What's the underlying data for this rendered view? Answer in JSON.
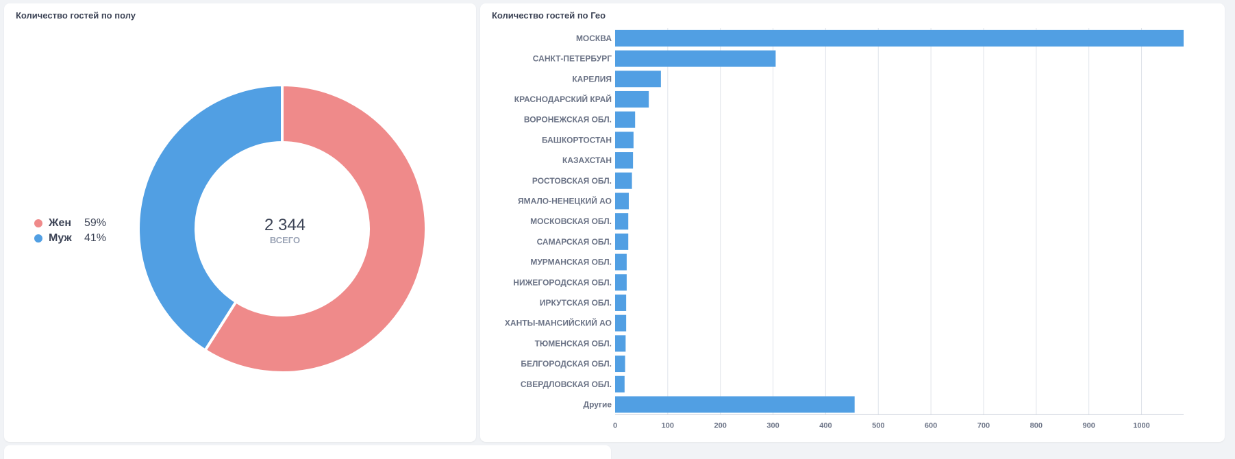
{
  "colors": {
    "female": "#ef8a8a",
    "male": "#519fe3",
    "bar": "#519fe3",
    "grid": "#dfe3ea"
  },
  "gender_card": {
    "title": "Количество гостей по полу",
    "total_value": "2 344",
    "total_label": "ВСЕГО",
    "legend": [
      {
        "label": "Жен",
        "pct": "59%"
      },
      {
        "label": "Муж",
        "pct": "41%"
      }
    ]
  },
  "geo_card": {
    "title": "Количество гостей по Гео"
  },
  "chart_data": [
    {
      "type": "pie",
      "title": "Количество гостей по полу",
      "donut": true,
      "total": 2344,
      "labels": [
        "Жен",
        "Муж"
      ],
      "values": [
        59,
        41
      ],
      "legend_position": "left"
    },
    {
      "type": "bar",
      "orientation": "horizontal",
      "title": "Количество гостей по Гео",
      "categories": [
        "МОСКВА",
        "САНКТ-ПЕТЕРБУРГ",
        "КАРЕЛИЯ",
        "КРАСНОДАРСКИЙ КРАЙ",
        "ВОРОНЕЖСКАЯ ОБЛ.",
        "БАШКОРТОСТАН",
        "КАЗАХСТАН",
        "РОСТОВСКАЯ ОБЛ.",
        "ЯМАЛО-НЕНЕЦКИЙ АО",
        "МОСКОВСКАЯ ОБЛ.",
        "САМАРСКАЯ ОБЛ.",
        "МУРМАНСКАЯ ОБЛ.",
        "НИЖЕГОРОДСКАЯ ОБЛ.",
        "ИРКУТСКАЯ ОБЛ.",
        "ХАНТЫ-МАНСИЙСКИЙ АО",
        "ТЮМЕНСКАЯ ОБЛ.",
        "БЕЛГОРОДСКАЯ ОБЛ.",
        "СВЕРДЛОВСКАЯ ОБЛ.",
        "Другие"
      ],
      "values": [
        1080,
        305,
        87,
        64,
        38,
        35,
        34,
        32,
        26,
        25,
        25,
        22,
        22,
        21,
        21,
        20,
        19,
        18,
        455
      ],
      "xlim": [
        0,
        1080
      ],
      "xticks": [
        0,
        100,
        200,
        300,
        400,
        500,
        600,
        700,
        800,
        900,
        1000
      ],
      "grid": true
    }
  ]
}
